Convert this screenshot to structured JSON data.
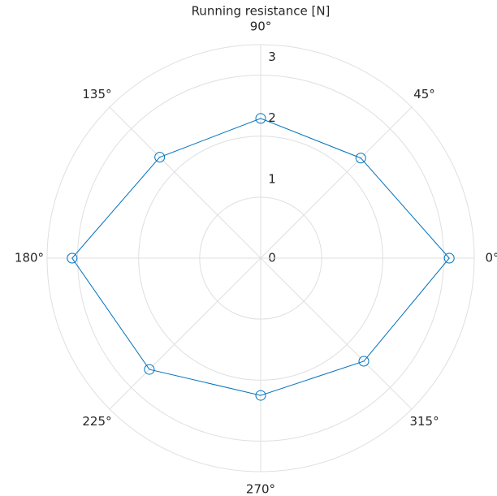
{
  "chart_data": {
    "type": "polar",
    "title": "Running resistance [N]",
    "x": [
      0,
      45,
      90,
      135,
      180,
      225,
      270,
      315
    ],
    "series": [
      {
        "color": "#0072bd",
        "values": [
          3.09,
          2.32,
          2.29,
          2.34,
          3.09,
          2.58,
          2.25,
          2.39
        ]
      }
    ],
    "rlim": [
      0,
      3.5
    ],
    "rticks": [
      0,
      1,
      2,
      3
    ],
    "thetaticks": [
      {
        "value": 0,
        "label": "0°"
      },
      {
        "value": 45,
        "label": "45°"
      },
      {
        "value": 90,
        "label": "90°"
      },
      {
        "value": 135,
        "label": "135°"
      },
      {
        "value": 180,
        "label": "180°"
      },
      {
        "value": 225,
        "label": "225°"
      },
      {
        "value": 270,
        "label": "270°"
      },
      {
        "value": 315,
        "label": "315°"
      }
    ],
    "grid": true
  }
}
